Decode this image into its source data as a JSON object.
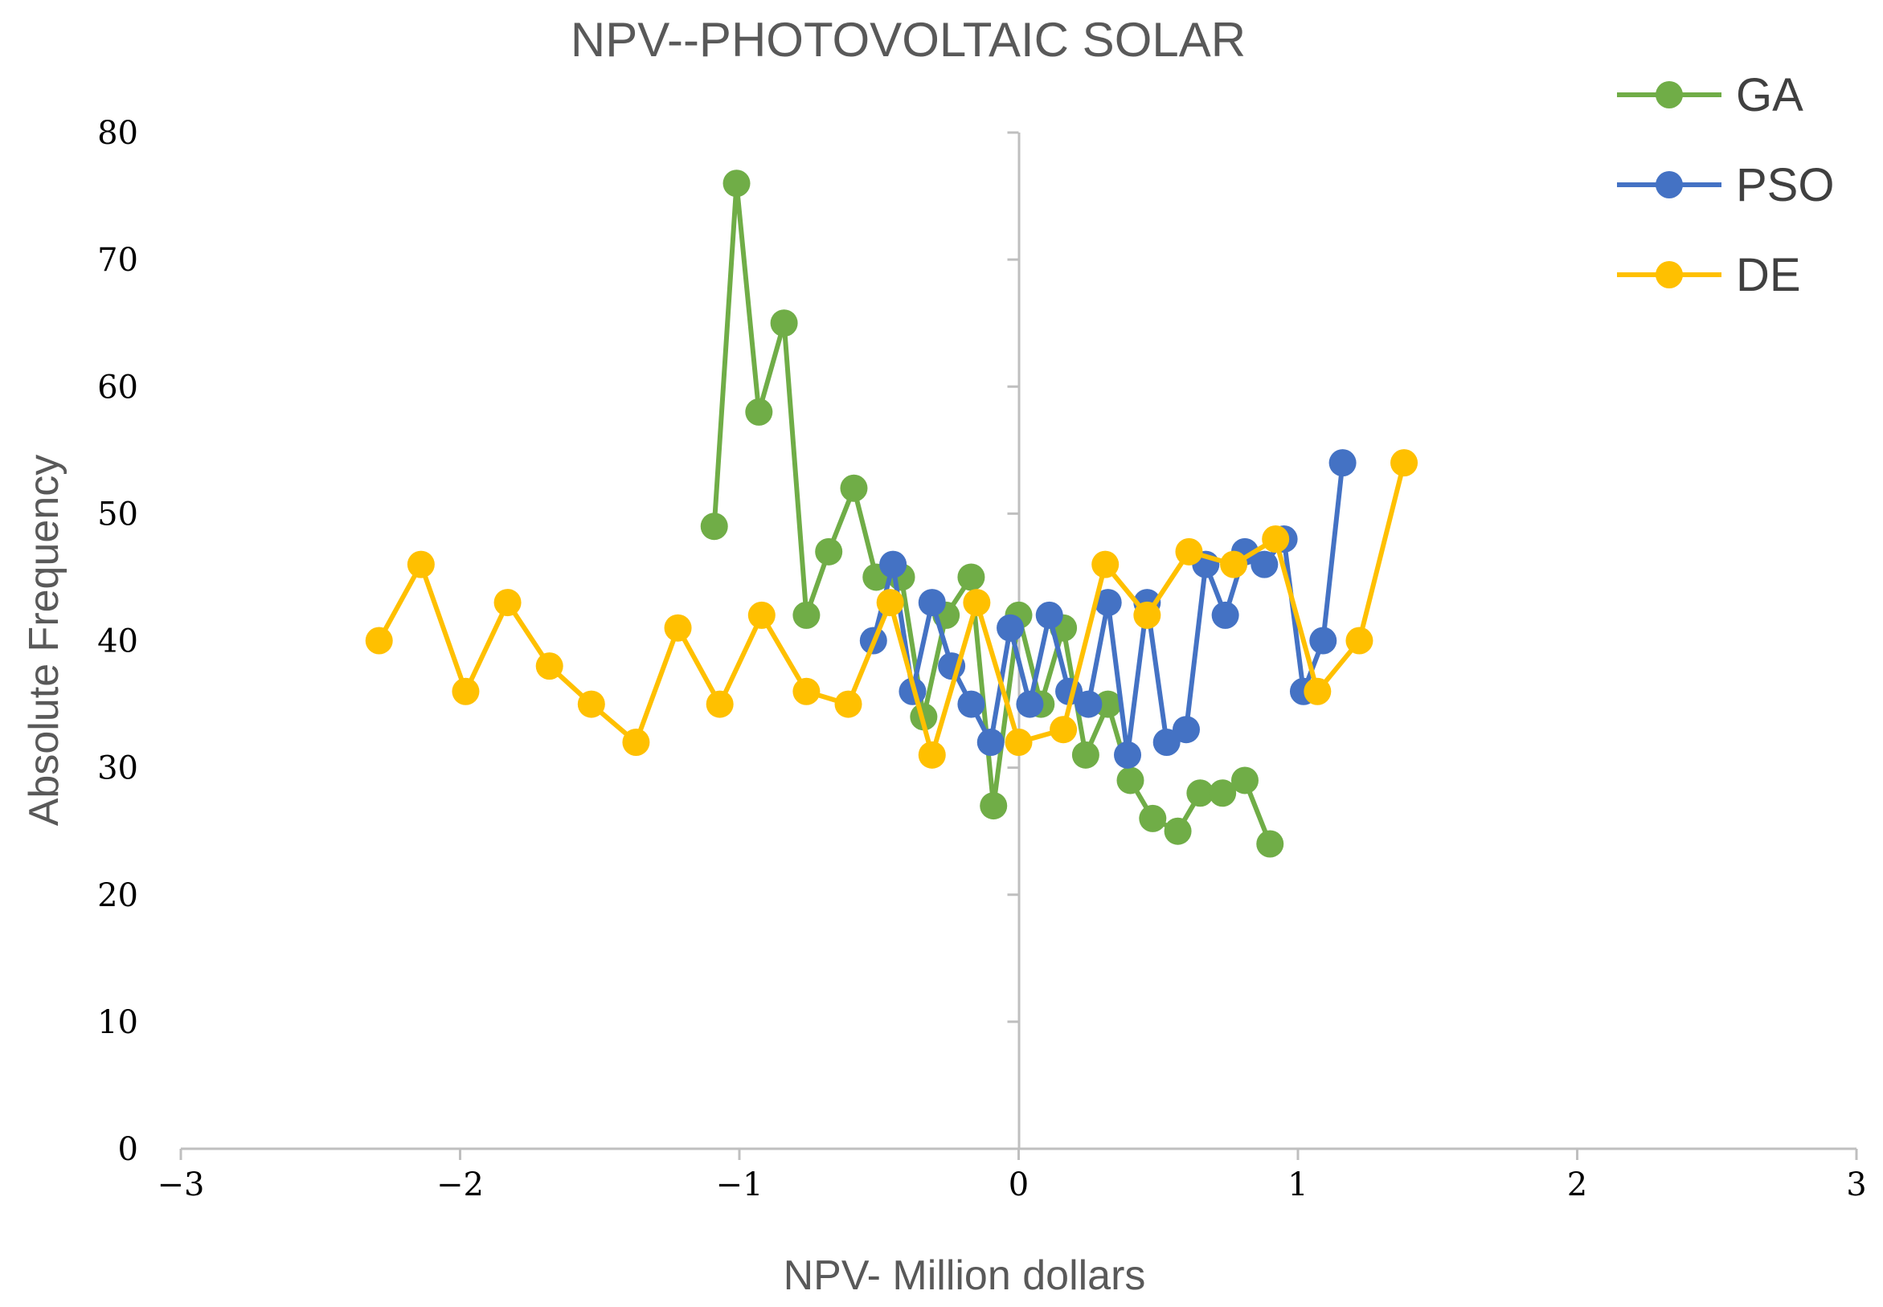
{
  "chart_data": {
    "type": "scatter",
    "title": "NPV--PHOTOVOLTAIC SOLAR",
    "xlabel": "NPV- Million dollars",
    "ylabel": "Absolute Frequency",
    "xlim": [
      -3,
      3
    ],
    "ylim": [
      0,
      80
    ],
    "x_ticks": [
      -3,
      -2,
      -1,
      0,
      1,
      2,
      3
    ],
    "x_tick_labels": [
      "−3",
      "−2",
      "−1",
      "0",
      "1",
      "2",
      "3"
    ],
    "y_ticks": [
      0,
      10,
      20,
      30,
      40,
      50,
      60,
      70,
      80
    ],
    "y_tick_labels": [
      "0",
      "10",
      "20",
      "30",
      "40",
      "50",
      "60",
      "70",
      "80"
    ],
    "grid": false,
    "legend_position": "top-right",
    "series": [
      {
        "name": "GA",
        "color": "#70AD47",
        "points": [
          [
            -1.09,
            49
          ],
          [
            -1.01,
            76
          ],
          [
            -0.93,
            58
          ],
          [
            -0.84,
            65
          ],
          [
            -0.76,
            42
          ],
          [
            -0.68,
            47
          ],
          [
            -0.59,
            52
          ],
          [
            -0.51,
            45
          ],
          [
            -0.42,
            45
          ],
          [
            -0.34,
            34
          ],
          [
            -0.26,
            42
          ],
          [
            -0.17,
            45
          ],
          [
            -0.09,
            27
          ],
          [
            0.0,
            42
          ],
          [
            0.08,
            35
          ],
          [
            0.16,
            41
          ],
          [
            0.24,
            31
          ],
          [
            0.32,
            35
          ],
          [
            0.4,
            29
          ],
          [
            0.48,
            26
          ],
          [
            0.57,
            25
          ],
          [
            0.65,
            28
          ],
          [
            0.73,
            28
          ],
          [
            0.81,
            29
          ],
          [
            0.9,
            24
          ]
        ]
      },
      {
        "name": "PSO",
        "color": "#4472C4",
        "points": [
          [
            -0.52,
            40
          ],
          [
            -0.45,
            46
          ],
          [
            -0.38,
            36
          ],
          [
            -0.31,
            43
          ],
          [
            -0.24,
            38
          ],
          [
            -0.17,
            35
          ],
          [
            -0.1,
            32
          ],
          [
            -0.03,
            41
          ],
          [
            0.04,
            35
          ],
          [
            0.11,
            42
          ],
          [
            0.18,
            36
          ],
          [
            0.25,
            35
          ],
          [
            0.32,
            43
          ],
          [
            0.39,
            31
          ],
          [
            0.46,
            43
          ],
          [
            0.53,
            32
          ],
          [
            0.6,
            33
          ],
          [
            0.67,
            46
          ],
          [
            0.74,
            42
          ],
          [
            0.81,
            47
          ],
          [
            0.88,
            46
          ],
          [
            0.95,
            48
          ],
          [
            1.02,
            36
          ],
          [
            1.09,
            40
          ],
          [
            1.16,
            54
          ]
        ]
      },
      {
        "name": "DE",
        "color": "#FFC000",
        "points": [
          [
            -2.29,
            40
          ],
          [
            -2.14,
            46
          ],
          [
            -1.98,
            36
          ],
          [
            -1.83,
            43
          ],
          [
            -1.68,
            38
          ],
          [
            -1.53,
            35
          ],
          [
            -1.37,
            32
          ],
          [
            -1.22,
            41
          ],
          [
            -1.07,
            35
          ],
          [
            -0.92,
            42
          ],
          [
            -0.76,
            36
          ],
          [
            -0.61,
            35
          ],
          [
            -0.46,
            43
          ],
          [
            -0.31,
            31
          ],
          [
            -0.15,
            43
          ],
          [
            0.0,
            32
          ],
          [
            0.16,
            33
          ],
          [
            0.31,
            46
          ],
          [
            0.46,
            42
          ],
          [
            0.61,
            47
          ],
          [
            0.77,
            46
          ],
          [
            0.92,
            48
          ],
          [
            1.07,
            36
          ],
          [
            1.22,
            40
          ],
          [
            1.38,
            54
          ]
        ]
      }
    ]
  }
}
